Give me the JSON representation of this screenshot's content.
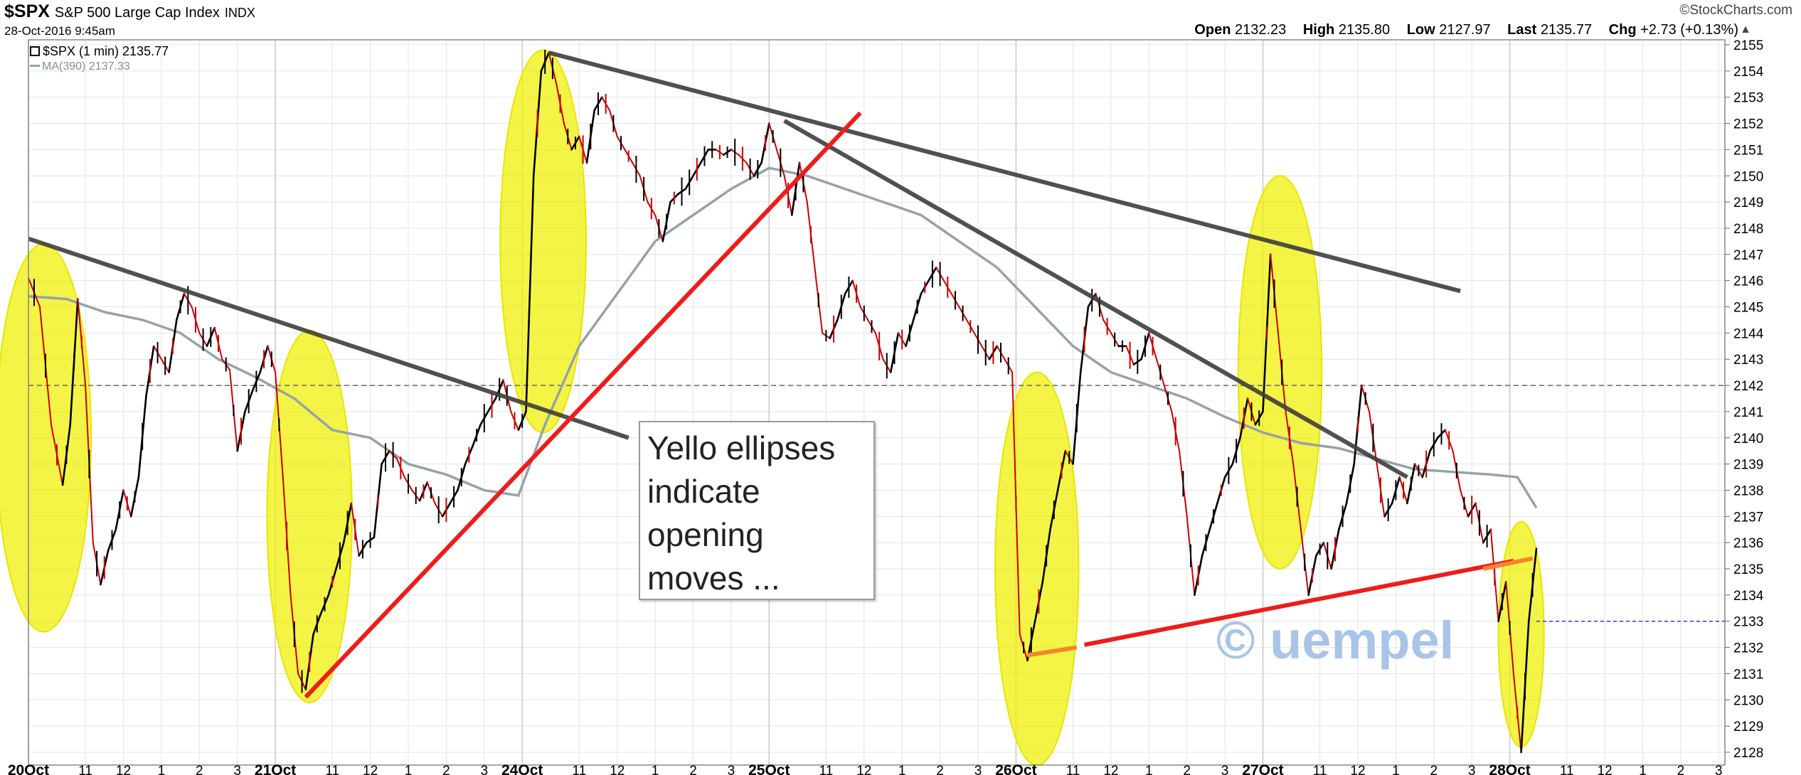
{
  "header": {
    "symbol": "$SPX",
    "description": "S&P 500 Large Cap Index",
    "exchange": "INDX",
    "datetime": "28-Oct-2016 9:45am",
    "brand": "©StockCharts.com",
    "open_label": "Open",
    "open": "2132.23",
    "high_label": "High",
    "high": "2135.80",
    "low_label": "Low",
    "low": "2127.97",
    "last_label": "Last",
    "last": "2135.77",
    "chg_label": "Chg",
    "chg": "+2.73 (+0.13%)"
  },
  "legend": {
    "price": "$SPX (1 min) 2135.77",
    "ma": "MA(390) 2137.33"
  },
  "annotation": "Yello ellipses\nindicate\nopening\nmoves ...",
  "watermark": "© uempel",
  "colors": {
    "price": "#000000",
    "down_tick": "#cc0000",
    "ma": "#95a3a8",
    "trendline_dark": "#3d3d3d",
    "trendline_red": "#ee1c1c",
    "ellipse": "#f0f000",
    "reference_dash": "#666666",
    "last_price_dash": "#1f3fd0"
  },
  "chart_data": {
    "type": "line",
    "title": "$SPX S&P 500 Large Cap Index INDX",
    "ylim": [
      2127.5,
      2155.4
    ],
    "y_ticks": [
      2128,
      2129,
      2130,
      2131,
      2132,
      2133,
      2134,
      2135,
      2136,
      2137,
      2138,
      2139,
      2140,
      2141,
      2142,
      2143,
      2144,
      2145,
      2146,
      2147,
      2148,
      2149,
      2150,
      2151,
      2152,
      2153,
      2154,
      2155
    ],
    "x_ticks": [
      {
        "t": 0,
        "label": "20Oct",
        "major": true
      },
      {
        "t": 1.5,
        "label": "11"
      },
      {
        "t": 2.5,
        "label": "12"
      },
      {
        "t": 3.5,
        "label": "1"
      },
      {
        "t": 4.5,
        "label": "2"
      },
      {
        "t": 5.5,
        "label": "3"
      },
      {
        "t": 6.5,
        "label": "21Oct",
        "major": true
      },
      {
        "t": 8,
        "label": "11"
      },
      {
        "t": 9,
        "label": "12"
      },
      {
        "t": 10,
        "label": "1"
      },
      {
        "t": 11,
        "label": "2"
      },
      {
        "t": 12,
        "label": "3"
      },
      {
        "t": 13,
        "label": "24Oct",
        "major": true
      },
      {
        "t": 14.5,
        "label": "11"
      },
      {
        "t": 15.5,
        "label": "12"
      },
      {
        "t": 16.5,
        "label": "1"
      },
      {
        "t": 17.5,
        "label": "2"
      },
      {
        "t": 18.5,
        "label": "3"
      },
      {
        "t": 19.5,
        "label": "25Oct",
        "major": true
      },
      {
        "t": 21,
        "label": "11"
      },
      {
        "t": 22,
        "label": "12"
      },
      {
        "t": 23,
        "label": "1"
      },
      {
        "t": 24,
        "label": "2"
      },
      {
        "t": 25,
        "label": "3"
      },
      {
        "t": 26,
        "label": "26Oct",
        "major": true
      },
      {
        "t": 27.5,
        "label": "11"
      },
      {
        "t": 28.5,
        "label": "12"
      },
      {
        "t": 29.5,
        "label": "1"
      },
      {
        "t": 30.5,
        "label": "2"
      },
      {
        "t": 31.5,
        "label": "3"
      },
      {
        "t": 32.5,
        "label": "27Oct",
        "major": true
      },
      {
        "t": 34,
        "label": "11"
      },
      {
        "t": 35,
        "label": "12"
      },
      {
        "t": 36,
        "label": "1"
      },
      {
        "t": 37,
        "label": "2"
      },
      {
        "t": 38,
        "label": "3"
      },
      {
        "t": 39,
        "label": "28Oct",
        "major": true
      },
      {
        "t": 40.5,
        "label": "11"
      },
      {
        "t": 41.5,
        "label": "12"
      },
      {
        "t": 42.5,
        "label": "1"
      },
      {
        "t": 43.5,
        "label": "2"
      },
      {
        "t": 44.5,
        "label": "3"
      }
    ],
    "price": [
      [
        0,
        2146.1
      ],
      [
        0.3,
        2145.0
      ],
      [
        0.6,
        2140.5
      ],
      [
        0.9,
        2138.2
      ],
      [
        1.1,
        2140.5
      ],
      [
        1.3,
        2145.3
      ],
      [
        1.5,
        2142.0
      ],
      [
        1.7,
        2136.0
      ],
      [
        1.9,
        2134.4
      ],
      [
        2.1,
        2135.7
      ],
      [
        2.3,
        2136.5
      ],
      [
        2.5,
        2138.0
      ],
      [
        2.7,
        2137.0
      ],
      [
        2.9,
        2138.5
      ],
      [
        3.1,
        2141.6
      ],
      [
        3.3,
        2143.5
      ],
      [
        3.5,
        2143.0
      ],
      [
        3.7,
        2142.5
      ],
      [
        3.9,
        2144.5
      ],
      [
        4.1,
        2145.5
      ],
      [
        4.3,
        2145.0
      ],
      [
        4.5,
        2144.0
      ],
      [
        4.7,
        2143.5
      ],
      [
        4.9,
        2144.2
      ],
      [
        5.1,
        2143.0
      ],
      [
        5.3,
        2142.6
      ],
      [
        5.5,
        2139.5
      ],
      [
        5.7,
        2141.0
      ],
      [
        5.9,
        2141.8
      ],
      [
        6.1,
        2142.5
      ],
      [
        6.3,
        2143.5
      ],
      [
        6.5,
        2142.5
      ],
      [
        6.7,
        2138.5
      ],
      [
        6.9,
        2134.0
      ],
      [
        7.1,
        2131.0
      ],
      [
        7.3,
        2130.4
      ],
      [
        7.5,
        2132.5
      ],
      [
        7.7,
        2133.3
      ],
      [
        7.9,
        2134.0
      ],
      [
        8.1,
        2135.0
      ],
      [
        8.3,
        2136.0
      ],
      [
        8.5,
        2137.5
      ],
      [
        8.7,
        2135.5
      ],
      [
        8.9,
        2136.0
      ],
      [
        9.1,
        2136.2
      ],
      [
        9.3,
        2139.0
      ],
      [
        9.5,
        2139.5
      ],
      [
        9.7,
        2139.2
      ],
      [
        9.9,
        2138.5
      ],
      [
        10.1,
        2138.0
      ],
      [
        10.3,
        2137.6
      ],
      [
        10.5,
        2138.3
      ],
      [
        10.7,
        2137.5
      ],
      [
        10.9,
        2137.0
      ],
      [
        11.1,
        2137.5
      ],
      [
        11.3,
        2138.0
      ],
      [
        11.5,
        2139.0
      ],
      [
        11.7,
        2139.7
      ],
      [
        11.9,
        2140.5
      ],
      [
        12.1,
        2141.0
      ],
      [
        12.3,
        2141.5
      ],
      [
        12.5,
        2142.2
      ],
      [
        12.7,
        2141.0
      ],
      [
        12.9,
        2140.3
      ],
      [
        13.1,
        2141.0
      ],
      [
        13.3,
        2150.0
      ],
      [
        13.5,
        2154.0
      ],
      [
        13.7,
        2154.7
      ],
      [
        13.9,
        2153.5
      ],
      [
        14.1,
        2152.0
      ],
      [
        14.3,
        2151.0
      ],
      [
        14.5,
        2151.5
      ],
      [
        14.7,
        2150.5
      ],
      [
        14.9,
        2152.5
      ],
      [
        15.1,
        2153.0
      ],
      [
        15.3,
        2152.5
      ],
      [
        15.5,
        2151.5
      ],
      [
        15.7,
        2151.0
      ],
      [
        15.9,
        2150.5
      ],
      [
        16.1,
        2150.0
      ],
      [
        16.3,
        2149.0
      ],
      [
        16.5,
        2148.5
      ],
      [
        16.7,
        2147.5
      ],
      [
        16.9,
        2149.0
      ],
      [
        17.1,
        2149.3
      ],
      [
        17.3,
        2149.5
      ],
      [
        17.5,
        2150.0
      ],
      [
        17.7,
        2150.5
      ],
      [
        17.9,
        2151.0
      ],
      [
        18.1,
        2151.0
      ],
      [
        18.3,
        2150.8
      ],
      [
        18.5,
        2151.0
      ],
      [
        18.7,
        2150.8
      ],
      [
        18.9,
        2150.5
      ],
      [
        19.1,
        2150.0
      ],
      [
        19.3,
        2150.5
      ],
      [
        19.5,
        2152.0
      ],
      [
        19.7,
        2151.0
      ],
      [
        19.9,
        2150.0
      ],
      [
        20.1,
        2148.5
      ],
      [
        20.3,
        2150.5
      ],
      [
        20.5,
        2149.0
      ],
      [
        20.7,
        2146.5
      ],
      [
        20.9,
        2144.0
      ],
      [
        21.1,
        2143.8
      ],
      [
        21.3,
        2144.5
      ],
      [
        21.5,
        2145.5
      ],
      [
        21.7,
        2146.0
      ],
      [
        21.9,
        2145.0
      ],
      [
        22.1,
        2144.5
      ],
      [
        22.3,
        2144.0
      ],
      [
        22.5,
        2143.0
      ],
      [
        22.7,
        2142.5
      ],
      [
        22.9,
        2144.0
      ],
      [
        23.1,
        2143.5
      ],
      [
        23.3,
        2144.5
      ],
      [
        23.5,
        2145.5
      ],
      [
        23.7,
        2146.0
      ],
      [
        23.9,
        2146.5
      ],
      [
        24.1,
        2146.0
      ],
      [
        24.3,
        2145.5
      ],
      [
        24.5,
        2145.0
      ],
      [
        24.7,
        2144.5
      ],
      [
        24.9,
        2144.0
      ],
      [
        25.1,
        2143.5
      ],
      [
        25.3,
        2143.0
      ],
      [
        25.5,
        2143.5
      ],
      [
        25.7,
        2143.0
      ],
      [
        25.9,
        2142.5
      ],
      [
        26.1,
        2132.5
      ],
      [
        26.3,
        2131.5
      ],
      [
        26.5,
        2133.0
      ],
      [
        26.7,
        2134.5
      ],
      [
        26.9,
        2136.5
      ],
      [
        27.1,
        2138.0
      ],
      [
        27.3,
        2139.5
      ],
      [
        27.5,
        2139.0
      ],
      [
        27.7,
        2142.5
      ],
      [
        27.9,
        2145.0
      ],
      [
        28.1,
        2145.5
      ],
      [
        28.3,
        2144.5
      ],
      [
        28.5,
        2144.0
      ],
      [
        28.7,
        2143.5
      ],
      [
        28.9,
        2143.5
      ],
      [
        29.1,
        2142.8
      ],
      [
        29.3,
        2143.0
      ],
      [
        29.5,
        2144.0
      ],
      [
        29.7,
        2143.0
      ],
      [
        29.9,
        2142.0
      ],
      [
        30.1,
        2141.0
      ],
      [
        30.3,
        2139.5
      ],
      [
        30.5,
        2137.0
      ],
      [
        30.7,
        2134.0
      ],
      [
        30.9,
        2135.5
      ],
      [
        31.1,
        2136.5
      ],
      [
        31.3,
        2137.5
      ],
      [
        31.5,
        2138.5
      ],
      [
        31.7,
        2139.0
      ],
      [
        31.9,
        2140.0
      ],
      [
        32.1,
        2141.5
      ],
      [
        32.3,
        2140.5
      ],
      [
        32.5,
        2141.0
      ],
      [
        32.7,
        2147.0
      ],
      [
        32.9,
        2144.0
      ],
      [
        33.1,
        2141.0
      ],
      [
        33.3,
        2139.0
      ],
      [
        33.5,
        2136.5
      ],
      [
        33.7,
        2134.0
      ],
      [
        33.9,
        2135.5
      ],
      [
        34.1,
        2136.0
      ],
      [
        34.3,
        2135.0
      ],
      [
        34.5,
        2136.5
      ],
      [
        34.7,
        2137.5
      ],
      [
        34.9,
        2139.0
      ],
      [
        35.1,
        2142.0
      ],
      [
        35.3,
        2141.0
      ],
      [
        35.5,
        2139.0
      ],
      [
        35.7,
        2137.0
      ],
      [
        35.9,
        2137.5
      ],
      [
        36.1,
        2138.5
      ],
      [
        36.3,
        2137.5
      ],
      [
        36.5,
        2139.0
      ],
      [
        36.7,
        2138.5
      ],
      [
        36.9,
        2139.5
      ],
      [
        37.1,
        2140.0
      ],
      [
        37.3,
        2140.3
      ],
      [
        37.5,
        2139.5
      ],
      [
        37.7,
        2138.0
      ],
      [
        37.9,
        2137.0
      ],
      [
        38.1,
        2137.5
      ],
      [
        38.3,
        2136.0
      ],
      [
        38.5,
        2136.5
      ],
      [
        38.7,
        2133.0
      ],
      [
        38.9,
        2134.5
      ],
      [
        39.1,
        2131.0
      ],
      [
        39.3,
        2128.0
      ],
      [
        39.5,
        2133.0
      ],
      [
        39.7,
        2135.77
      ]
    ],
    "ma": [
      [
        0,
        2145.4
      ],
      [
        1,
        2145.3
      ],
      [
        2,
        2144.8
      ],
      [
        3,
        2144.5
      ],
      [
        4,
        2144.0
      ],
      [
        5,
        2143.0
      ],
      [
        6,
        2142.3
      ],
      [
        7,
        2141.5
      ],
      [
        8,
        2140.3
      ],
      [
        9,
        2140.0
      ],
      [
        10,
        2139.0
      ],
      [
        11,
        2138.6
      ],
      [
        12,
        2138.0
      ],
      [
        12.9,
        2137.8
      ],
      [
        13.6,
        2140.5
      ],
      [
        14.5,
        2143.5
      ],
      [
        15.5,
        2145.5
      ],
      [
        16.5,
        2147.5
      ],
      [
        17.5,
        2148.5
      ],
      [
        18.5,
        2149.5
      ],
      [
        19.5,
        2150.3
      ],
      [
        20.5,
        2150.0
      ],
      [
        21.5,
        2149.5
      ],
      [
        22.5,
        2149.0
      ],
      [
        23.5,
        2148.5
      ],
      [
        24.5,
        2147.5
      ],
      [
        25.5,
        2146.5
      ],
      [
        26.5,
        2145.0
      ],
      [
        27.5,
        2143.5
      ],
      [
        28.5,
        2142.5
      ],
      [
        29.5,
        2142.0
      ],
      [
        30.5,
        2141.5
      ],
      [
        31.5,
        2140.8
      ],
      [
        32.5,
        2140.2
      ],
      [
        33.5,
        2139.8
      ],
      [
        34.5,
        2139.6
      ],
      [
        35.5,
        2139.2
      ],
      [
        36.5,
        2138.8
      ],
      [
        37.5,
        2138.7
      ],
      [
        38.5,
        2138.6
      ],
      [
        39.2,
        2138.5
      ],
      [
        39.7,
        2137.33
      ]
    ],
    "trendlines": [
      {
        "color": "dark",
        "from": [
          0,
          2147.6
        ],
        "to": [
          15.8,
          2140.0
        ]
      },
      {
        "color": "dark",
        "from": [
          13.7,
          2154.7
        ],
        "to": [
          37.7,
          2145.6
        ]
      },
      {
        "color": "dark",
        "from": [
          19.9,
          2152.1
        ],
        "to": [
          36.3,
          2138.5
        ]
      },
      {
        "color": "red",
        "from": [
          7.3,
          2130.1
        ],
        "to": [
          21.9,
          2152.4
        ]
      },
      {
        "color": "red",
        "from": [
          27.8,
          2132.1
        ],
        "to": [
          39.1,
          2135.3
        ]
      },
      {
        "color": "orange",
        "from": [
          26.3,
          2131.7
        ],
        "to": [
          27.6,
          2132.0
        ]
      },
      {
        "color": "orange",
        "from": [
          38.3,
          2135.0
        ],
        "to": [
          39.6,
          2135.4
        ]
      }
    ],
    "ellipses": [
      {
        "t": 0.4,
        "y": 2140.0,
        "rt": 1.25,
        "ry": 7.4
      },
      {
        "t": 7.4,
        "y": 2137.0,
        "rt": 1.12,
        "ry": 7.1
      },
      {
        "t": 13.55,
        "y": 2147.5,
        "rt": 1.13,
        "ry": 7.3
      },
      {
        "t": 26.55,
        "y": 2135.0,
        "rt": 1.1,
        "ry": 7.5
      },
      {
        "t": 32.95,
        "y": 2142.5,
        "rt": 1.1,
        "ry": 7.5
      },
      {
        "t": 39.3,
        "y": 2132.5,
        "rt": 0.6,
        "ry": 4.3
      }
    ],
    "ref_line": 2142.0,
    "last_line": 2133.0
  }
}
